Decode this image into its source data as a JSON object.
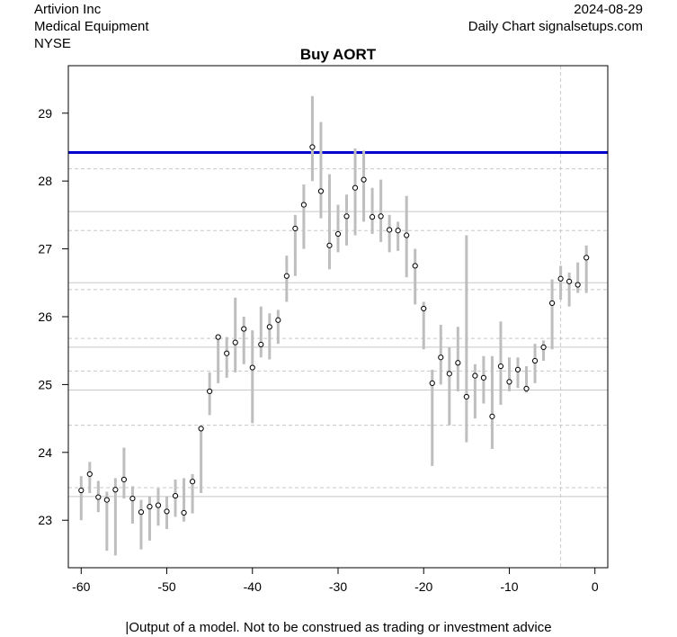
{
  "header": {
    "company": "Artivion Inc",
    "sector": "Medical Equipment",
    "exchange": "NYSE",
    "date": "2024-08-29",
    "source": "Daily Chart signalsetups.com"
  },
  "footer": {
    "disclaimer": "|Output of a model. Not to be construed as trading or investment advice"
  },
  "colors": {
    "range_bar": "#bebebe",
    "signal_line": "#0000cc",
    "grid_solid": "#c8c8c8",
    "grid_dashed": "#c8c8c8"
  },
  "chart_data": {
    "type": "range-dot",
    "title": "Buy AORT",
    "xlim": [
      -61.5,
      1.5
    ],
    "ylim": [
      22.3,
      29.7
    ],
    "x_ticks": [
      -60,
      -50,
      -40,
      -30,
      -20,
      -10,
      0
    ],
    "y_ticks": [
      23,
      24,
      25,
      26,
      27,
      28,
      29
    ],
    "signal_level": 28.42,
    "vertical_marker_x": -4,
    "solid_hlines": [
      23.35,
      24.92,
      25.55,
      26.5,
      27.55
    ],
    "dashed_hlines": [
      23.48,
      24.4,
      25.2,
      25.68,
      26.4,
      27.27,
      28.18
    ],
    "points": [
      {
        "x": -60,
        "low": 23.0,
        "high": 23.65,
        "close": 23.44
      },
      {
        "x": -59,
        "low": 23.4,
        "high": 23.86,
        "close": 23.68
      },
      {
        "x": -58,
        "low": 23.12,
        "high": 23.58,
        "close": 23.34
      },
      {
        "x": -57,
        "low": 22.55,
        "high": 23.42,
        "close": 23.3
      },
      {
        "x": -56,
        "low": 22.48,
        "high": 23.62,
        "close": 23.45
      },
      {
        "x": -55,
        "low": 23.32,
        "high": 24.07,
        "close": 23.6
      },
      {
        "x": -54,
        "low": 22.95,
        "high": 23.5,
        "close": 23.32
      },
      {
        "x": -53,
        "low": 22.57,
        "high": 23.3,
        "close": 23.12
      },
      {
        "x": -52,
        "low": 22.7,
        "high": 23.35,
        "close": 23.2
      },
      {
        "x": -51,
        "low": 22.92,
        "high": 23.47,
        "close": 23.22
      },
      {
        "x": -50,
        "low": 22.87,
        "high": 23.35,
        "close": 23.13
      },
      {
        "x": -49,
        "low": 23.05,
        "high": 23.6,
        "close": 23.36
      },
      {
        "x": -48,
        "low": 22.98,
        "high": 23.62,
        "close": 23.11
      },
      {
        "x": -47,
        "low": 23.1,
        "high": 23.68,
        "close": 23.57
      },
      {
        "x": -46,
        "low": 23.4,
        "high": 24.4,
        "close": 24.35
      },
      {
        "x": -45,
        "low": 24.55,
        "high": 25.18,
        "close": 24.9
      },
      {
        "x": -44,
        "low": 25.02,
        "high": 25.72,
        "close": 25.7
      },
      {
        "x": -43,
        "low": 25.1,
        "high": 25.7,
        "close": 25.46
      },
      {
        "x": -42,
        "low": 25.18,
        "high": 26.28,
        "close": 25.62
      },
      {
        "x": -41,
        "low": 25.3,
        "high": 26.0,
        "close": 25.82
      },
      {
        "x": -40,
        "low": 24.43,
        "high": 25.8,
        "close": 25.25
      },
      {
        "x": -39,
        "low": 25.4,
        "high": 26.15,
        "close": 25.59
      },
      {
        "x": -38,
        "low": 25.37,
        "high": 26.05,
        "close": 25.85
      },
      {
        "x": -37,
        "low": 25.6,
        "high": 26.1,
        "close": 25.95
      },
      {
        "x": -36,
        "low": 26.22,
        "high": 26.9,
        "close": 26.6
      },
      {
        "x": -35,
        "low": 26.6,
        "high": 27.5,
        "close": 27.3
      },
      {
        "x": -34,
        "low": 27.0,
        "high": 27.95,
        "close": 27.65
      },
      {
        "x": -33,
        "low": 28.0,
        "high": 29.25,
        "close": 28.5
      },
      {
        "x": -32,
        "low": 27.45,
        "high": 28.87,
        "close": 27.85
      },
      {
        "x": -31,
        "low": 26.7,
        "high": 28.1,
        "close": 27.05
      },
      {
        "x": -30,
        "low": 26.95,
        "high": 27.65,
        "close": 27.22
      },
      {
        "x": -29,
        "low": 27.05,
        "high": 27.8,
        "close": 27.48
      },
      {
        "x": -28,
        "low": 27.2,
        "high": 28.48,
        "close": 27.9
      },
      {
        "x": -27,
        "low": 27.4,
        "high": 28.45,
        "close": 28.02
      },
      {
        "x": -26,
        "low": 27.22,
        "high": 27.9,
        "close": 27.47
      },
      {
        "x": -25,
        "low": 27.1,
        "high": 28.02,
        "close": 27.48
      },
      {
        "x": -24,
        "low": 26.95,
        "high": 27.5,
        "close": 27.28
      },
      {
        "x": -23,
        "low": 26.97,
        "high": 27.4,
        "close": 27.27
      },
      {
        "x": -22,
        "low": 26.58,
        "high": 27.78,
        "close": 27.2
      },
      {
        "x": -21,
        "low": 26.18,
        "high": 27.0,
        "close": 26.75
      },
      {
        "x": -20,
        "low": 25.52,
        "high": 26.22,
        "close": 26.12
      },
      {
        "x": -19,
        "low": 23.8,
        "high": 25.22,
        "close": 25.02
      },
      {
        "x": -18,
        "low": 25.0,
        "high": 25.88,
        "close": 25.4
      },
      {
        "x": -17,
        "low": 24.4,
        "high": 25.55,
        "close": 25.16
      },
      {
        "x": -16,
        "low": 24.9,
        "high": 25.85,
        "close": 25.32
      },
      {
        "x": -15,
        "low": 24.15,
        "high": 27.2,
        "close": 24.82
      },
      {
        "x": -14,
        "low": 24.5,
        "high": 25.3,
        "close": 25.13
      },
      {
        "x": -13,
        "low": 24.72,
        "high": 25.42,
        "close": 25.1
      },
      {
        "x": -12,
        "low": 24.05,
        "high": 25.42,
        "close": 24.53
      },
      {
        "x": -11,
        "low": 24.7,
        "high": 25.93,
        "close": 25.27
      },
      {
        "x": -10,
        "low": 24.9,
        "high": 25.4,
        "close": 25.04
      },
      {
        "x": -9,
        "low": 24.95,
        "high": 25.4,
        "close": 25.22
      },
      {
        "x": -8,
        "low": 24.88,
        "high": 25.27,
        "close": 24.94
      },
      {
        "x": -7,
        "low": 25.02,
        "high": 25.6,
        "close": 25.35
      },
      {
        "x": -6,
        "low": 25.35,
        "high": 25.65,
        "close": 25.55
      },
      {
        "x": -5,
        "low": 25.52,
        "high": 26.55,
        "close": 26.2
      },
      {
        "x": -4,
        "low": 26.25,
        "high": 26.75,
        "close": 26.56
      },
      {
        "x": -3,
        "low": 26.15,
        "high": 26.65,
        "close": 26.52
      },
      {
        "x": -2,
        "low": 26.35,
        "high": 26.8,
        "close": 26.47
      },
      {
        "x": -1,
        "low": 26.35,
        "high": 27.05,
        "close": 26.87
      }
    ]
  }
}
